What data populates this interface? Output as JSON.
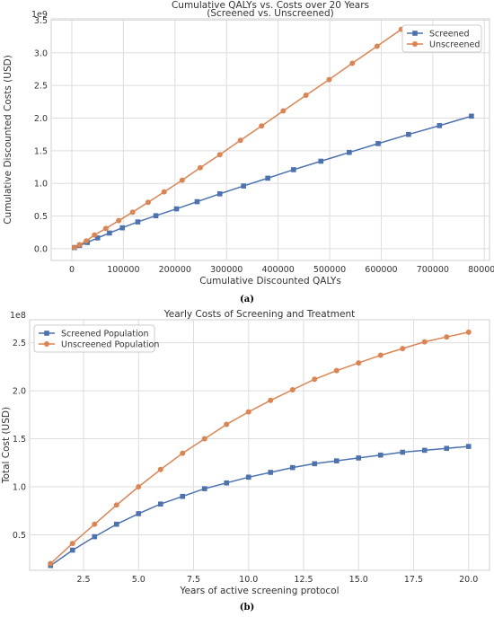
{
  "chart_data": [
    {
      "type": "line",
      "title_line1": "Cumulative QALYs vs. Costs over 20 Years",
      "title_line2": "(Screened vs. Unscreened)",
      "xlabel": "Cumulative Discounted QALYs",
      "ylabel": "Cumulative Discounted Costs (USD)",
      "y_offset_label": "1e9",
      "xlim": [
        -40000,
        810000
      ],
      "ylim": [
        -0.18,
        3.52
      ],
      "xticks": [
        0,
        100000,
        200000,
        300000,
        400000,
        500000,
        600000,
        700000,
        800000
      ],
      "xtick_labels": [
        "0",
        "100000",
        "200000",
        "300000",
        "400000",
        "500000",
        "600000",
        "700000",
        "800000"
      ],
      "yticks": [
        0.0,
        0.5,
        1.0,
        1.5,
        2.0,
        2.5,
        3.0,
        3.5
      ],
      "ytick_labels": [
        "0.0",
        "0.5",
        "1.0",
        "1.5",
        "2.0",
        "2.5",
        "3.0",
        "3.5"
      ],
      "grid": true,
      "legend_position": "top-right",
      "series": [
        {
          "name": "Screened",
          "color": "#4c72b0",
          "marker": "square",
          "x": [
            5000,
            15000,
            30000,
            50000,
            73000,
            98000,
            128000,
            163000,
            203000,
            243000,
            287000,
            333000,
            380000,
            430000,
            483000,
            538000,
            594000,
            653000,
            713000,
            775000
          ],
          "y": [
            0.017,
            0.05,
            0.095,
            0.165,
            0.24,
            0.32,
            0.41,
            0.505,
            0.61,
            0.72,
            0.84,
            0.96,
            1.08,
            1.21,
            1.34,
            1.475,
            1.61,
            1.75,
            1.885,
            2.03
          ]
        },
        {
          "name": "Unscreened",
          "color": "#dd8452",
          "marker": "circle",
          "x": [
            5000,
            15000,
            28000,
            44000,
            66000,
            91000,
            118000,
            148000,
            179000,
            214000,
            249000,
            287000,
            327000,
            368000,
            410000,
            454000,
            499000,
            544000,
            592000,
            639000
          ],
          "y": [
            0.02,
            0.06,
            0.12,
            0.21,
            0.31,
            0.43,
            0.56,
            0.71,
            0.87,
            1.05,
            1.24,
            1.44,
            1.66,
            1.88,
            2.11,
            2.35,
            2.59,
            2.84,
            3.1,
            3.36
          ]
        }
      ],
      "caption": "(a)"
    },
    {
      "type": "line",
      "title_line1": "Yearly Costs of Screening and Treatment",
      "title_line2": "",
      "xlabel": "Years of active screening protocol",
      "ylabel": "Total Cost (USD)",
      "y_offset_label": "1e8",
      "xlim": [
        0.05,
        20.95
      ],
      "ylim": [
        0.13,
        2.74
      ],
      "xticks": [
        2.5,
        5.0,
        7.5,
        10.0,
        12.5,
        15.0,
        17.5,
        20.0
      ],
      "xtick_labels": [
        "2.5",
        "5.0",
        "7.5",
        "10.0",
        "12.5",
        "15.0",
        "17.5",
        "20.0"
      ],
      "yticks": [
        0.5,
        1.0,
        1.5,
        2.0,
        2.5
      ],
      "ytick_labels": [
        "0.5",
        "1.0",
        "1.5",
        "2.0",
        "2.5"
      ],
      "grid": true,
      "legend_position": "top-left",
      "series": [
        {
          "name": "Screened Population",
          "color": "#4c72b0",
          "marker": "square",
          "x": [
            1,
            2,
            3,
            4,
            5,
            6,
            7,
            8,
            9,
            10,
            11,
            12,
            13,
            14,
            15,
            16,
            17,
            18,
            19,
            20
          ],
          "y": [
            0.18,
            0.34,
            0.48,
            0.61,
            0.72,
            0.82,
            0.9,
            0.98,
            1.04,
            1.1,
            1.15,
            1.2,
            1.24,
            1.27,
            1.3,
            1.33,
            1.36,
            1.38,
            1.4,
            1.42
          ]
        },
        {
          "name": "Unscreened Population",
          "color": "#dd8452",
          "marker": "circle",
          "x": [
            1,
            2,
            3,
            4,
            5,
            6,
            7,
            8,
            9,
            10,
            11,
            12,
            13,
            14,
            15,
            16,
            17,
            18,
            19,
            20
          ],
          "y": [
            0.2,
            0.41,
            0.61,
            0.81,
            1.0,
            1.18,
            1.35,
            1.5,
            1.65,
            1.78,
            1.9,
            2.01,
            2.12,
            2.21,
            2.29,
            2.37,
            2.44,
            2.51,
            2.56,
            2.61
          ]
        }
      ],
      "caption": "(b)"
    }
  ]
}
